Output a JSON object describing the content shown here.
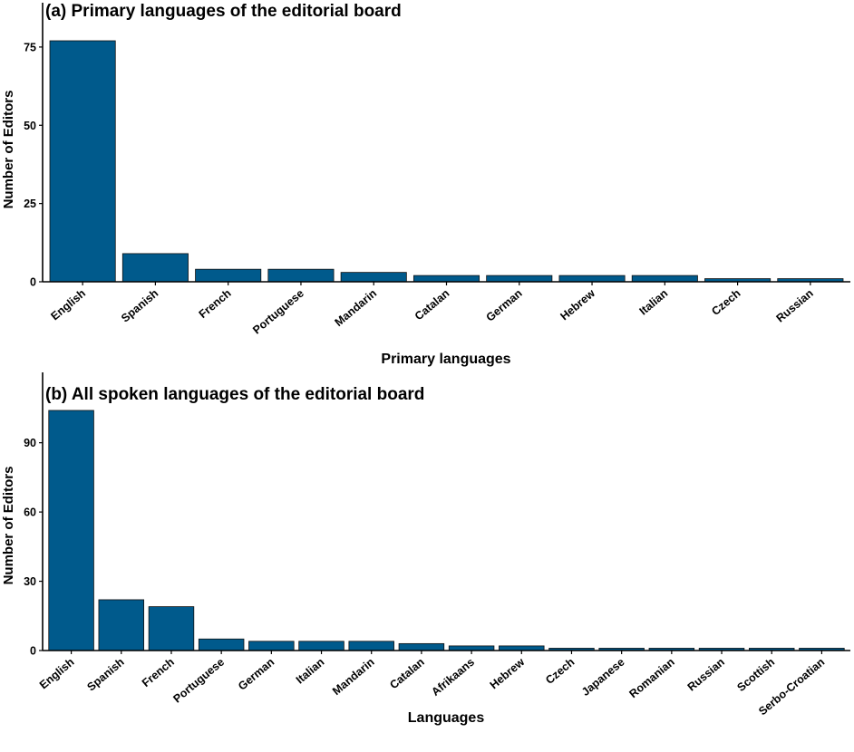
{
  "chart_data": [
    {
      "type": "bar",
      "title": "(a) Primary languages of the editorial board",
      "xlabel": "Primary languages",
      "ylabel": "Number of Editors",
      "categories": [
        "English",
        "Spanish",
        "French",
        "Portuguese",
        "Mandarin",
        "Catalan",
        "German",
        "Hebrew",
        "Italian",
        "Czech",
        "Russian"
      ],
      "values": [
        77,
        9,
        4,
        4,
        3,
        2,
        2,
        2,
        2,
        1,
        1
      ],
      "ylim": [
        0,
        77
      ],
      "yticks": [
        0,
        25,
        50,
        75
      ],
      "bar_color": "#005a8c",
      "grid": false,
      "legend": "none"
    },
    {
      "type": "bar",
      "title": "(b) All spoken languages of the editorial board",
      "xlabel": "Languages",
      "ylabel": "Number of Editors",
      "categories": [
        "English",
        "Spanish",
        "French",
        "Portuguese",
        "German",
        "Italian",
        "Mandarin",
        "Catalan",
        "Afrikaans",
        "Hebrew",
        "Czech",
        "Japanese",
        "Romanian",
        "Russian",
        "Scottish",
        "Serbo-Croatian"
      ],
      "values": [
        104,
        22,
        19,
        5,
        4,
        4,
        4,
        3,
        2,
        2,
        1,
        1,
        1,
        1,
        1,
        1
      ],
      "ylim": [
        0,
        104
      ],
      "yticks": [
        0,
        30,
        60,
        90
      ],
      "bar_color": "#005a8c",
      "grid": false,
      "legend": "none"
    }
  ]
}
